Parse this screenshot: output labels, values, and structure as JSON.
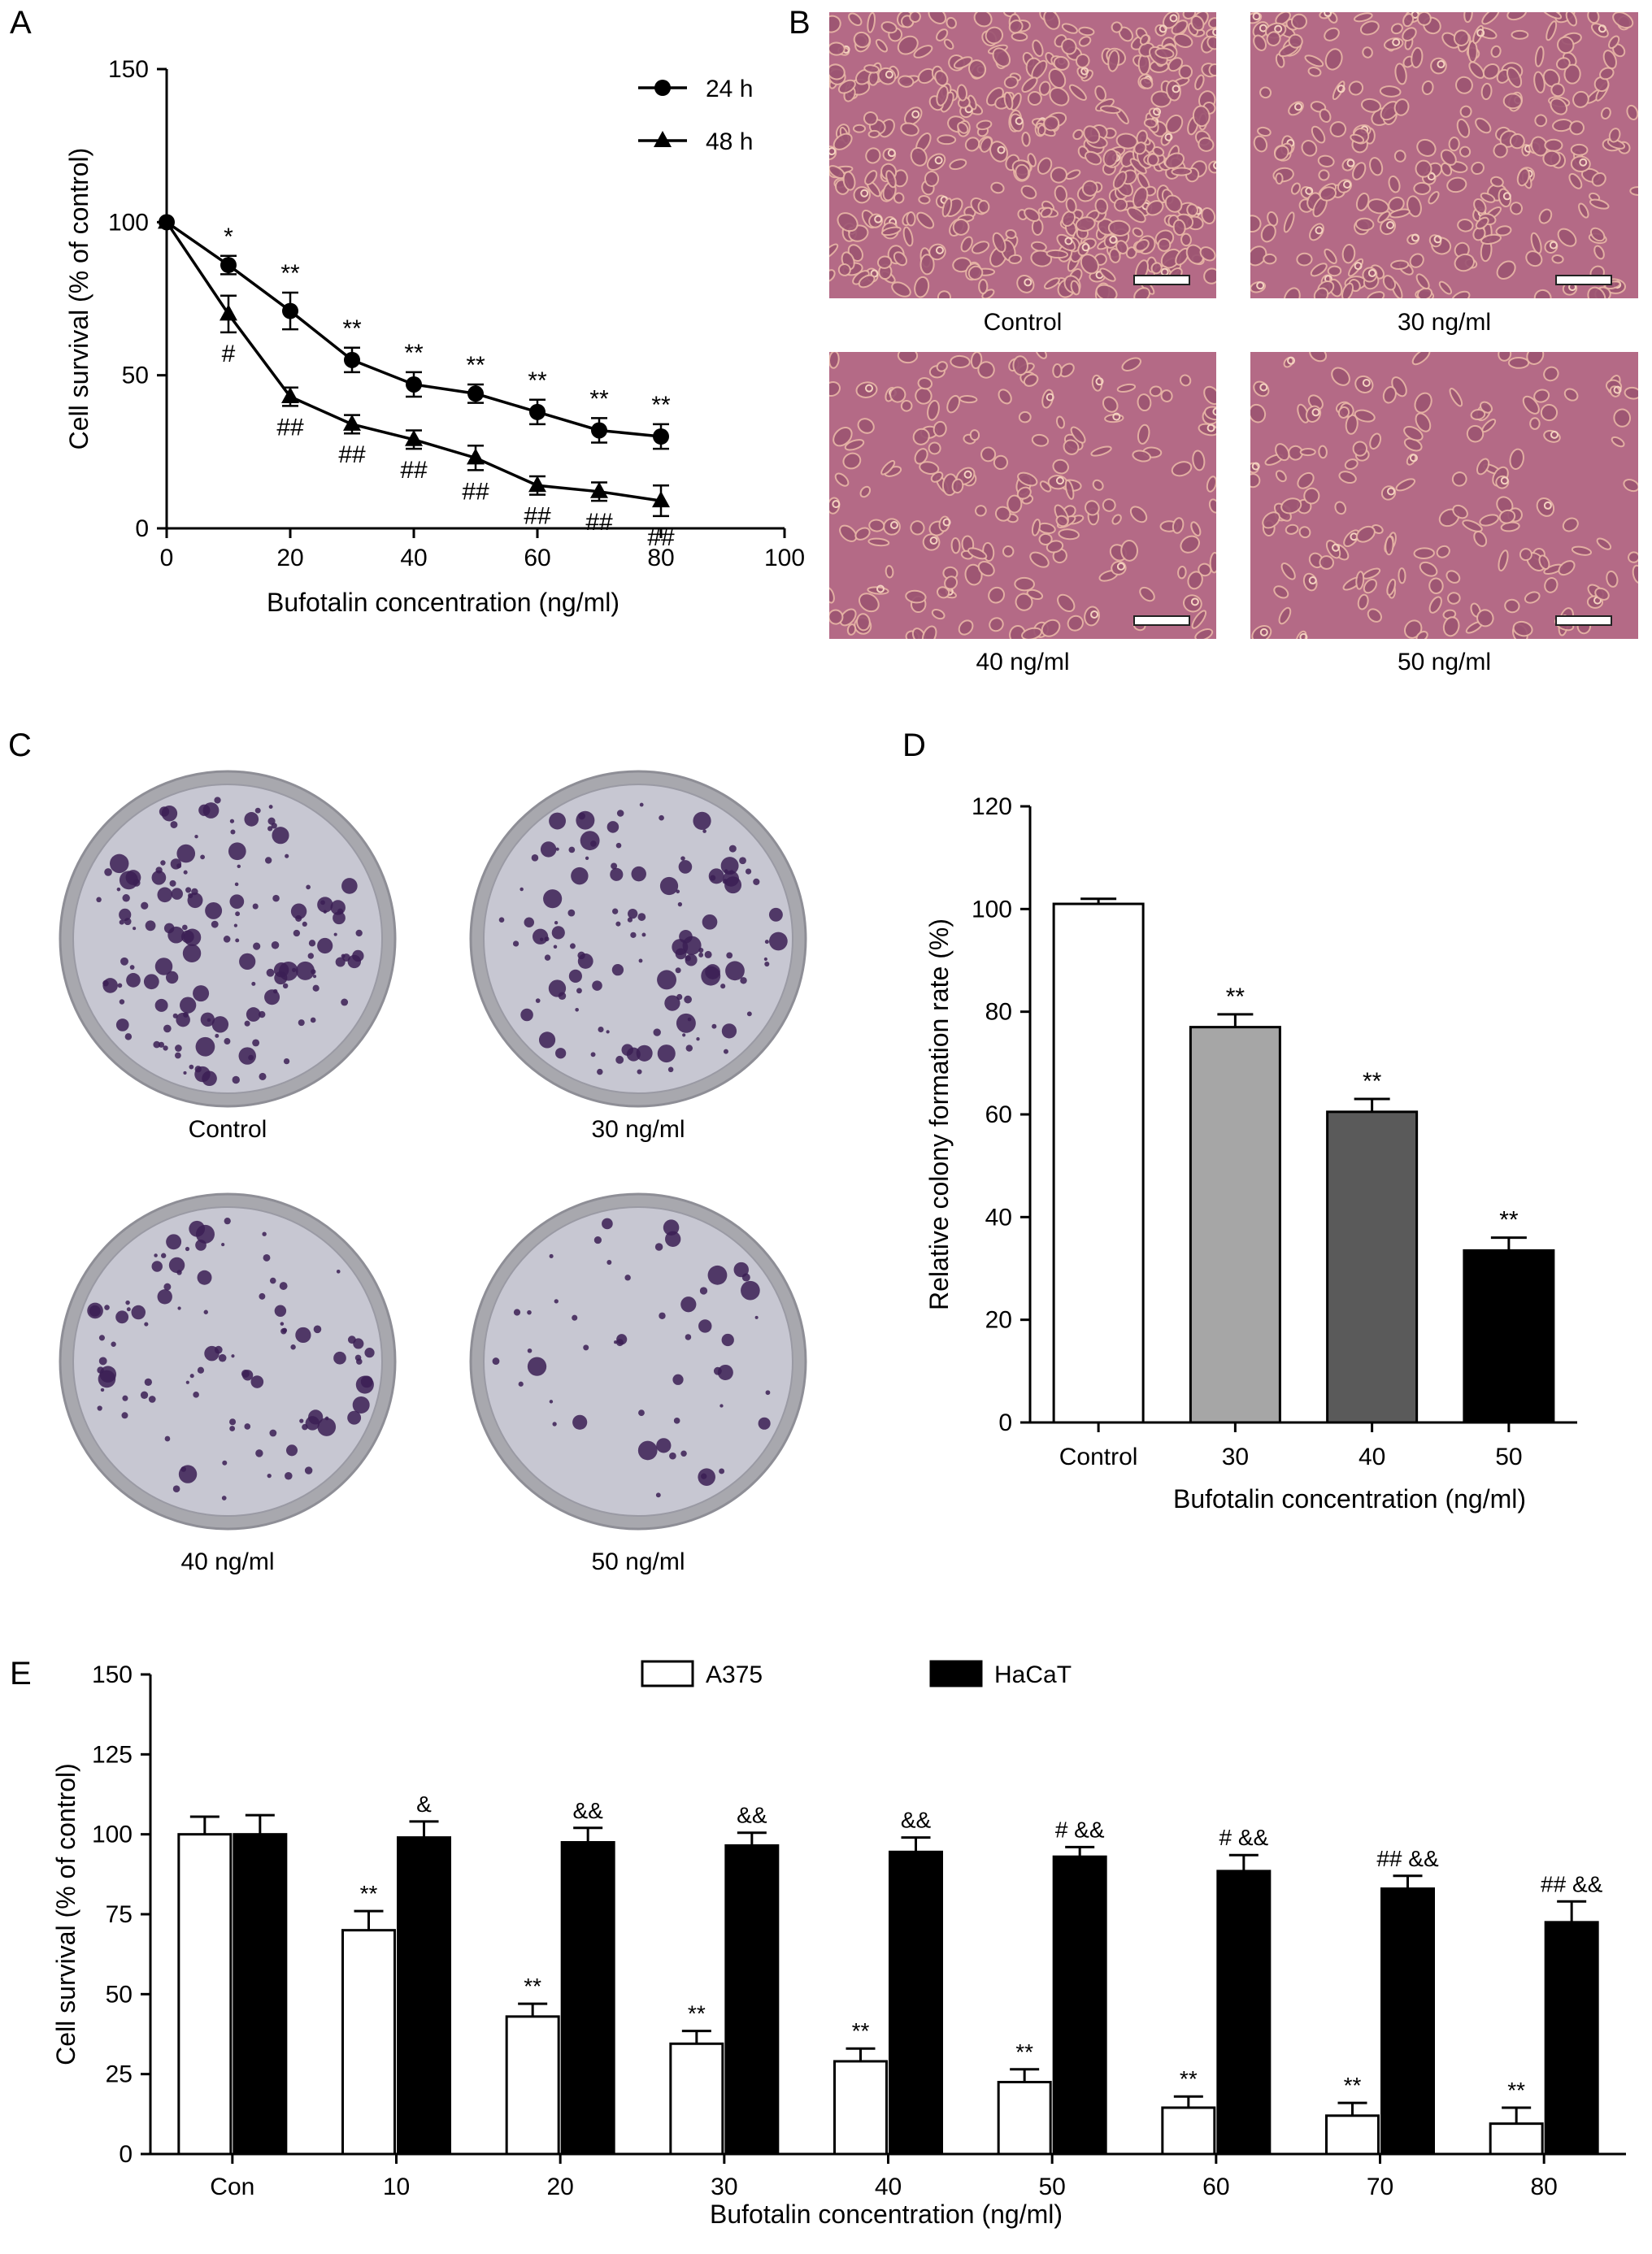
{
  "panels": {
    "A": "A",
    "B": "B",
    "C": "C",
    "D": "D",
    "E": "E"
  },
  "colors": {
    "micro_bg": "#b46a86",
    "cell": "#e8b6a6",
    "plate_bg": "#c7c7d2",
    "colony": "#3b1e55",
    "rim": "#a8a8ae",
    "bar_control": "#ffffff",
    "bar_30": "#a6a6a6",
    "bar_40": "#5a5a5a",
    "bar_50": "#000000"
  },
  "micrographs": [
    {
      "label": "Control",
      "density": 1.0
    },
    {
      "label": "30 ng/ml",
      "density": 0.62
    },
    {
      "label": "40 ng/ml",
      "density": 0.42
    },
    {
      "label": "50 ng/ml",
      "density": 0.36
    }
  ],
  "plates": [
    {
      "label": "Control",
      "colonies": 1.0
    },
    {
      "label": "30 ng/ml",
      "colonies": 0.8
    },
    {
      "label": "40 ng/ml",
      "colonies": 0.62
    },
    {
      "label": "50 ng/ml",
      "colonies": 0.33
    }
  ],
  "chart_data": [
    {
      "panel": "A",
      "type": "line",
      "xlabel": "Bufotalin concentration (ng/ml)",
      "ylabel": "Cell survival (% of control)",
      "xlim": [
        0,
        100
      ],
      "ylim": [
        0,
        150
      ],
      "xticks": [
        0,
        20,
        40,
        60,
        80,
        100
      ],
      "yticks": [
        0,
        50,
        100,
        150
      ],
      "legend_position": "top-right",
      "x": [
        0,
        10,
        20,
        30,
        40,
        50,
        60,
        70,
        80
      ],
      "series": [
        {
          "name": "24 h",
          "marker": "circle",
          "values": [
            100,
            86,
            71,
            55,
            47,
            44,
            38,
            32,
            30
          ],
          "errors": [
            0,
            3,
            6,
            4,
            4,
            3,
            4,
            4,
            4
          ],
          "annotations": [
            "",
            "*",
            "**",
            "**",
            "**",
            "**",
            "**",
            "**",
            "**"
          ]
        },
        {
          "name": "48 h",
          "marker": "triangle",
          "values": [
            100,
            70,
            43,
            34,
            29,
            23,
            14,
            12,
            9
          ],
          "errors": [
            0,
            6,
            3,
            3,
            3,
            4,
            3,
            3,
            5
          ],
          "annotations": [
            "",
            "#",
            "##",
            "##",
            "##",
            "##",
            "##",
            "##",
            "##"
          ]
        }
      ]
    },
    {
      "panel": "D",
      "type": "bar",
      "xlabel": "Bufotalin concentration (ng/ml)",
      "ylabel": "Relative colony formation rate (%)",
      "ylim": [
        0,
        120
      ],
      "yticks": [
        0,
        20,
        40,
        60,
        80,
        100,
        120
      ],
      "categories": [
        "Control",
        "30",
        "40",
        "50"
      ],
      "values": [
        101,
        77,
        60.5,
        33.5
      ],
      "errors": [
        1,
        2.5,
        2.5,
        2.5
      ],
      "annotations": [
        "",
        "**",
        "**",
        "**"
      ]
    },
    {
      "panel": "E",
      "type": "bar",
      "xlabel": "Bufotalin concentration (ng/ml)",
      "ylabel": "Cell survival (% of control)",
      "ylim": [
        0,
        150
      ],
      "yticks": [
        0,
        25,
        50,
        75,
        100,
        125,
        150
      ],
      "legend_position": "top",
      "categories": [
        "Con",
        "10",
        "20",
        "30",
        "40",
        "50",
        "60",
        "70",
        "80"
      ],
      "series": [
        {
          "name": "A375",
          "fill": "#ffffff",
          "values": [
            100,
            70,
            43,
            34.5,
            29,
            22.5,
            14.5,
            12,
            9.5
          ],
          "errors": [
            5.5,
            6,
            4,
            4,
            4,
            4,
            3.5,
            4,
            5
          ],
          "annotations": [
            "",
            "**",
            "**",
            "**",
            "**",
            "**",
            "**",
            "**",
            "**"
          ]
        },
        {
          "name": "HaCaT",
          "fill": "#000000",
          "values": [
            100,
            99,
            97.5,
            96.5,
            94.5,
            93,
            88.5,
            83,
            72.5
          ],
          "errors": [
            6,
            5,
            4.5,
            4,
            4.5,
            3,
            5,
            4,
            6.5
          ],
          "annotations": [
            "",
            "&",
            "&&",
            "&&",
            "&&",
            "# &&",
            "# &&",
            "## &&",
            "## &&"
          ]
        }
      ]
    }
  ]
}
